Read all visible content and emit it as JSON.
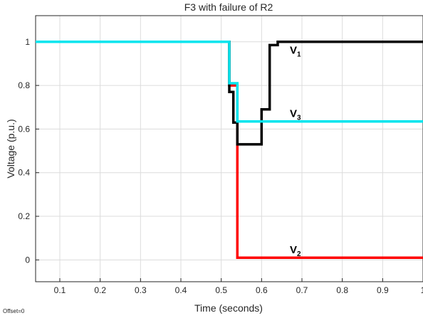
{
  "chart_data": {
    "type": "line",
    "title": "F3 with failure of R2",
    "xlabel": "Time (seconds)",
    "ylabel": "Voltage (p.u.)",
    "xlim": [
      0.04,
      1.0
    ],
    "ylim": [
      -0.1,
      1.12
    ],
    "x_ticks": [
      0.1,
      0.2,
      0.3,
      0.4,
      0.5,
      0.6,
      0.7,
      0.8,
      0.9,
      1
    ],
    "y_ticks": [
      0,
      0.2,
      0.4,
      0.6,
      0.8,
      1
    ],
    "grid": true,
    "footnote": "Offset=0",
    "series": [
      {
        "label_main": "V",
        "label_sub": "1",
        "color": "#000000",
        "label_at": [
          0.67,
          0.945
        ],
        "x": [
          0.04,
          0.52,
          0.52,
          0.53,
          0.53,
          0.54,
          0.54,
          0.6,
          0.6,
          0.62,
          0.62,
          0.64,
          0.64,
          1.0
        ],
        "y": [
          1.0,
          1.0,
          0.77,
          0.77,
          0.63,
          0.63,
          0.53,
          0.53,
          0.69,
          0.69,
          0.985,
          0.985,
          1.0,
          1.0
        ]
      },
      {
        "label_main": "V",
        "label_sub": "2",
        "color": "#ff0000",
        "label_at": [
          0.67,
          0.03
        ],
        "x": [
          0.04,
          0.52,
          0.52,
          0.54,
          0.54,
          1.0
        ],
        "y": [
          1.0,
          1.0,
          0.8,
          0.8,
          0.01,
          0.01
        ]
      },
      {
        "label_main": "V",
        "label_sub": "3",
        "color": "#00e5ee",
        "label_at": [
          0.67,
          0.655
        ],
        "x": [
          0.04,
          0.52,
          0.52,
          0.54,
          0.54,
          1.0
        ],
        "y": [
          1.0,
          1.0,
          0.81,
          0.81,
          0.635,
          0.635
        ]
      }
    ]
  }
}
